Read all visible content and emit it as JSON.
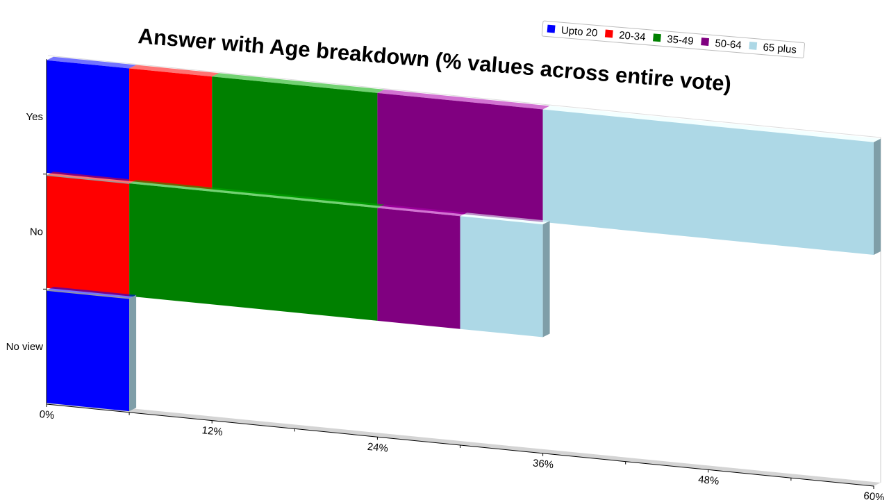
{
  "chart_data": {
    "type": "bar",
    "orientation": "horizontal",
    "stacked": true,
    "title": "Answer with Age breakdown (% values across entire vote)",
    "categories": [
      "Yes",
      "No",
      "No view"
    ],
    "series": [
      {
        "name": "Upto 20",
        "color": "#0000ff",
        "values": [
          6,
          0,
          6
        ]
      },
      {
        "name": "20-34",
        "color": "#ff0000",
        "values": [
          6,
          6,
          0
        ]
      },
      {
        "name": "35-49",
        "color": "#008000",
        "values": [
          12,
          18,
          0
        ]
      },
      {
        "name": "50-64",
        "color": "#800080",
        "values": [
          12,
          6,
          0
        ]
      },
      {
        "name": "65 plus",
        "color": "#add8e6",
        "values": [
          24,
          6,
          0
        ]
      }
    ],
    "xlim": [
      0,
      60
    ],
    "x_ticks": [
      "0%",
      "12%",
      "24%",
      "36%",
      "48%",
      "60%"
    ],
    "legend_position": "top-right",
    "grid": false
  }
}
